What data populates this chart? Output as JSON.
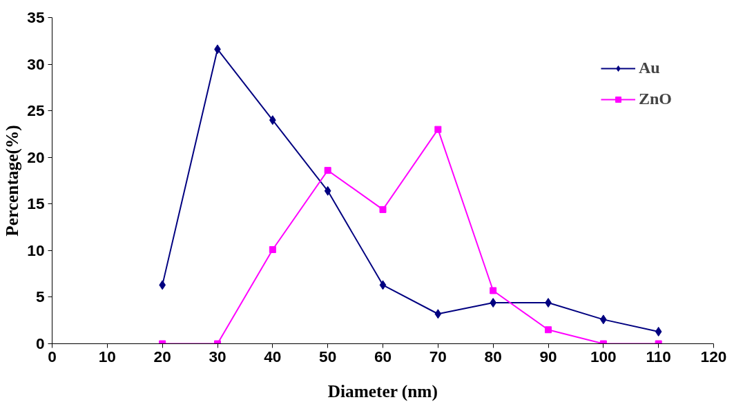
{
  "chart_data": {
    "type": "line",
    "xlabel": "Diameter (nm)",
    "ylabel": "Percentage(%)",
    "x": [
      20,
      30,
      40,
      50,
      60,
      70,
      80,
      90,
      100,
      110
    ],
    "series": [
      {
        "name": "Au",
        "color": "#000080",
        "marker": "diamond",
        "values": [
          6.3,
          31.6,
          24.0,
          16.4,
          6.3,
          3.2,
          4.4,
          4.4,
          2.6,
          1.3
        ]
      },
      {
        "name": "ZnO",
        "color": "#ff00ff",
        "marker": "square",
        "values": [
          0,
          0,
          10.1,
          18.6,
          14.4,
          23.0,
          5.7,
          1.5,
          0,
          0
        ]
      }
    ],
    "xlim": [
      0,
      120
    ],
    "xticks": [
      0,
      10,
      20,
      30,
      40,
      50,
      60,
      70,
      80,
      90,
      100,
      110,
      120
    ],
    "ylim": [
      0,
      35
    ],
    "yticks": [
      0,
      5,
      10,
      15,
      20,
      25,
      30,
      35
    ],
    "grid": false,
    "legend": "top right",
    "line_style": "solid"
  }
}
